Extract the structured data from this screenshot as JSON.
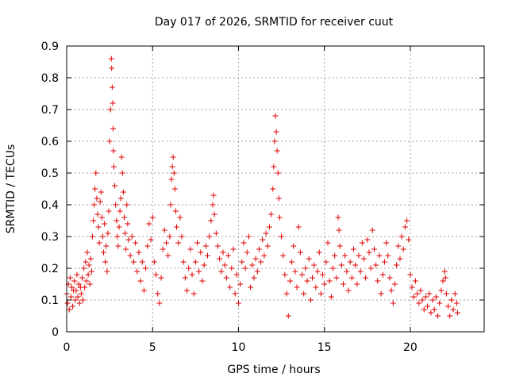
{
  "chart_data": {
    "type": "scatter",
    "title": "Day 017 of 2026, SRMTID for receiver cuut",
    "xlabel": "GPS time / hours",
    "ylabel": "SRMTID / TECUs",
    "xlim": [
      0,
      24.3
    ],
    "ylim": [
      0,
      0.9
    ],
    "xticks": [
      0,
      5,
      10,
      15,
      20
    ],
    "xtick_labels": [
      "0",
      "5",
      "10",
      "15",
      "20"
    ],
    "yticks": [
      0,
      0.1,
      0.2,
      0.3,
      0.4,
      0.5,
      0.6,
      0.7,
      0.8,
      0.9
    ],
    "ytick_labels": [
      "0",
      "0.1",
      "0.2",
      "0.3",
      "0.4",
      "0.5",
      "0.6",
      "0.7",
      "0.8",
      "0.9"
    ],
    "grid": true,
    "marker": "+",
    "marker_color": "#e00000",
    "series": [
      {
        "name": "SRMTID",
        "points": [
          [
            0.0,
            0.12
          ],
          [
            0.05,
            0.09
          ],
          [
            0.1,
            0.15
          ],
          [
            0.15,
            0.07
          ],
          [
            0.2,
            0.17
          ],
          [
            0.25,
            0.11
          ],
          [
            0.3,
            0.14
          ],
          [
            0.35,
            0.08
          ],
          [
            0.4,
            0.13
          ],
          [
            0.45,
            0.16
          ],
          [
            0.5,
            0.1
          ],
          [
            0.55,
            0.13
          ],
          [
            0.6,
            0.18
          ],
          [
            0.65,
            0.11
          ],
          [
            0.7,
            0.15
          ],
          [
            0.75,
            0.09
          ],
          [
            0.8,
            0.14
          ],
          [
            0.85,
            0.12
          ],
          [
            0.9,
            0.17
          ],
          [
            0.95,
            0.1
          ],
          [
            1.0,
            0.2
          ],
          [
            1.05,
            0.14
          ],
          [
            1.1,
            0.22
          ],
          [
            1.15,
            0.16
          ],
          [
            1.2,
            0.25
          ],
          [
            1.25,
            0.18
          ],
          [
            1.3,
            0.21
          ],
          [
            1.35,
            0.15
          ],
          [
            1.4,
            0.23
          ],
          [
            1.45,
            0.19
          ],
          [
            1.5,
            0.3
          ],
          [
            1.55,
            0.35
          ],
          [
            1.6,
            0.4
          ],
          [
            1.65,
            0.45
          ],
          [
            1.7,
            0.5
          ],
          [
            1.75,
            0.42
          ],
          [
            1.8,
            0.37
          ],
          [
            1.85,
            0.33
          ],
          [
            1.9,
            0.28
          ],
          [
            1.95,
            0.41
          ],
          [
            2.0,
            0.44
          ],
          [
            2.05,
            0.36
          ],
          [
            2.1,
            0.3
          ],
          [
            2.15,
            0.25
          ],
          [
            2.2,
            0.34
          ],
          [
            2.25,
            0.22
          ],
          [
            2.3,
            0.27
          ],
          [
            2.35,
            0.19
          ],
          [
            2.4,
            0.31
          ],
          [
            2.45,
            0.38
          ],
          [
            2.5,
            0.6
          ],
          [
            2.55,
            0.7
          ],
          [
            2.6,
            0.86
          ],
          [
            2.62,
            0.83
          ],
          [
            2.65,
            0.77
          ],
          [
            2.68,
            0.72
          ],
          [
            2.7,
            0.64
          ],
          [
            2.72,
            0.57
          ],
          [
            2.75,
            0.52
          ],
          [
            2.8,
            0.46
          ],
          [
            2.85,
            0.4
          ],
          [
            2.9,
            0.35
          ],
          [
            2.95,
            0.3
          ],
          [
            3.0,
            0.27
          ],
          [
            3.05,
            0.33
          ],
          [
            3.1,
            0.38
          ],
          [
            3.15,
            0.42
          ],
          [
            3.2,
            0.55
          ],
          [
            3.25,
            0.5
          ],
          [
            3.3,
            0.44
          ],
          [
            3.35,
            0.36
          ],
          [
            3.4,
            0.31
          ],
          [
            3.45,
            0.26
          ],
          [
            3.5,
            0.4
          ],
          [
            3.55,
            0.34
          ],
          [
            3.6,
            0.29
          ],
          [
            3.7,
            0.24
          ],
          [
            3.8,
            0.3
          ],
          [
            3.9,
            0.22
          ],
          [
            4.0,
            0.28
          ],
          [
            4.1,
            0.19
          ],
          [
            4.2,
            0.25
          ],
          [
            4.3,
            0.16
          ],
          [
            4.4,
            0.22
          ],
          [
            4.5,
            0.13
          ],
          [
            4.6,
            0.2
          ],
          [
            4.7,
            0.27
          ],
          [
            4.8,
            0.34
          ],
          [
            4.9,
            0.29
          ],
          [
            5.0,
            0.36
          ],
          [
            5.1,
            0.22
          ],
          [
            5.2,
            0.18
          ],
          [
            5.3,
            0.12
          ],
          [
            5.4,
            0.09
          ],
          [
            5.5,
            0.17
          ],
          [
            5.6,
            0.26
          ],
          [
            5.7,
            0.32
          ],
          [
            5.8,
            0.28
          ],
          [
            5.9,
            0.24
          ],
          [
            6.0,
            0.3
          ],
          [
            6.05,
            0.4
          ],
          [
            6.1,
            0.48
          ],
          [
            6.15,
            0.52
          ],
          [
            6.2,
            0.55
          ],
          [
            6.25,
            0.5
          ],
          [
            6.3,
            0.45
          ],
          [
            6.35,
            0.38
          ],
          [
            6.4,
            0.33
          ],
          [
            6.5,
            0.28
          ],
          [
            6.6,
            0.36
          ],
          [
            6.7,
            0.3
          ],
          [
            6.8,
            0.22
          ],
          [
            6.9,
            0.17
          ],
          [
            7.0,
            0.13
          ],
          [
            7.1,
            0.2
          ],
          [
            7.2,
            0.26
          ],
          [
            7.3,
            0.18
          ],
          [
            7.4,
            0.12
          ],
          [
            7.5,
            0.22
          ],
          [
            7.6,
            0.28
          ],
          [
            7.7,
            0.19
          ],
          [
            7.8,
            0.25
          ],
          [
            7.9,
            0.16
          ],
          [
            8.0,
            0.21
          ],
          [
            8.1,
            0.27
          ],
          [
            8.2,
            0.24
          ],
          [
            8.3,
            0.3
          ],
          [
            8.4,
            0.35
          ],
          [
            8.5,
            0.4
          ],
          [
            8.55,
            0.43
          ],
          [
            8.6,
            0.37
          ],
          [
            8.7,
            0.31
          ],
          [
            8.8,
            0.27
          ],
          [
            8.9,
            0.23
          ],
          [
            9.0,
            0.19
          ],
          [
            9.1,
            0.25
          ],
          [
            9.2,
            0.21
          ],
          [
            9.3,
            0.17
          ],
          [
            9.4,
            0.24
          ],
          [
            9.5,
            0.14
          ],
          [
            9.6,
            0.2
          ],
          [
            9.7,
            0.26
          ],
          [
            9.8,
            0.12
          ],
          [
            9.9,
            0.18
          ],
          [
            10.0,
            0.09
          ],
          [
            10.1,
            0.15
          ],
          [
            10.2,
            0.22
          ],
          [
            10.3,
            0.28
          ],
          [
            10.4,
            0.2
          ],
          [
            10.5,
            0.25
          ],
          [
            10.6,
            0.3
          ],
          [
            10.7,
            0.14
          ],
          [
            10.8,
            0.21
          ],
          [
            10.9,
            0.17
          ],
          [
            11.0,
            0.23
          ],
          [
            11.1,
            0.19
          ],
          [
            11.2,
            0.26
          ],
          [
            11.3,
            0.22
          ],
          [
            11.4,
            0.29
          ],
          [
            11.5,
            0.24
          ],
          [
            11.6,
            0.31
          ],
          [
            11.7,
            0.27
          ],
          [
            11.8,
            0.33
          ],
          [
            11.9,
            0.37
          ],
          [
            12.0,
            0.45
          ],
          [
            12.05,
            0.52
          ],
          [
            12.1,
            0.6
          ],
          [
            12.15,
            0.68
          ],
          [
            12.2,
            0.63
          ],
          [
            12.25,
            0.57
          ],
          [
            12.3,
            0.5
          ],
          [
            12.35,
            0.42
          ],
          [
            12.4,
            0.36
          ],
          [
            12.5,
            0.3
          ],
          [
            12.6,
            0.24
          ],
          [
            12.7,
            0.18
          ],
          [
            12.8,
            0.12
          ],
          [
            12.9,
            0.05
          ],
          [
            13.0,
            0.16
          ],
          [
            13.1,
            0.22
          ],
          [
            13.2,
            0.27
          ],
          [
            13.3,
            0.19
          ],
          [
            13.4,
            0.14
          ],
          [
            13.5,
            0.33
          ],
          [
            13.6,
            0.25
          ],
          [
            13.7,
            0.18
          ],
          [
            13.8,
            0.12
          ],
          [
            13.9,
            0.2
          ],
          [
            14.0,
            0.16
          ],
          [
            14.1,
            0.23
          ],
          [
            14.2,
            0.1
          ],
          [
            14.3,
            0.17
          ],
          [
            14.4,
            0.21
          ],
          [
            14.5,
            0.14
          ],
          [
            14.6,
            0.19
          ],
          [
            14.7,
            0.25
          ],
          [
            14.8,
            0.12
          ],
          [
            14.9,
            0.18
          ],
          [
            15.0,
            0.15
          ],
          [
            15.1,
            0.22
          ],
          [
            15.2,
            0.28
          ],
          [
            15.3,
            0.16
          ],
          [
            15.4,
            0.11
          ],
          [
            15.5,
            0.2
          ],
          [
            15.6,
            0.24
          ],
          [
            15.7,
            0.17
          ],
          [
            15.8,
            0.36
          ],
          [
            15.85,
            0.32
          ],
          [
            15.9,
            0.27
          ],
          [
            16.0,
            0.21
          ],
          [
            16.1,
            0.15
          ],
          [
            16.2,
            0.24
          ],
          [
            16.3,
            0.19
          ],
          [
            16.4,
            0.13
          ],
          [
            16.5,
            0.22
          ],
          [
            16.6,
            0.17
          ],
          [
            16.7,
            0.26
          ],
          [
            16.8,
            0.21
          ],
          [
            16.9,
            0.15
          ],
          [
            17.0,
            0.24
          ],
          [
            17.1,
            0.19
          ],
          [
            17.2,
            0.28
          ],
          [
            17.3,
            0.23
          ],
          [
            17.4,
            0.17
          ],
          [
            17.5,
            0.29
          ],
          [
            17.6,
            0.25
          ],
          [
            17.7,
            0.2
          ],
          [
            17.8,
            0.32
          ],
          [
            17.9,
            0.26
          ],
          [
            18.0,
            0.21
          ],
          [
            18.1,
            0.16
          ],
          [
            18.2,
            0.24
          ],
          [
            18.3,
            0.12
          ],
          [
            18.4,
            0.18
          ],
          [
            18.5,
            0.22
          ],
          [
            18.6,
            0.28
          ],
          [
            18.7,
            0.24
          ],
          [
            18.8,
            0.17
          ],
          [
            18.9,
            0.13
          ],
          [
            19.0,
            0.09
          ],
          [
            19.1,
            0.15
          ],
          [
            19.2,
            0.21
          ],
          [
            19.3,
            0.27
          ],
          [
            19.4,
            0.23
          ],
          [
            19.5,
            0.3
          ],
          [
            19.6,
            0.26
          ],
          [
            19.7,
            0.33
          ],
          [
            19.8,
            0.35
          ],
          [
            19.9,
            0.29
          ],
          [
            20.0,
            0.18
          ],
          [
            20.1,
            0.14
          ],
          [
            20.2,
            0.11
          ],
          [
            20.3,
            0.16
          ],
          [
            20.4,
            0.12
          ],
          [
            20.5,
            0.09
          ],
          [
            20.6,
            0.13
          ],
          [
            20.7,
            0.1
          ],
          [
            20.8,
            0.07
          ],
          [
            20.9,
            0.11
          ],
          [
            21.0,
            0.08
          ],
          [
            21.1,
            0.12
          ],
          [
            21.2,
            0.06
          ],
          [
            21.3,
            0.1
          ],
          [
            21.4,
            0.07
          ],
          [
            21.5,
            0.11
          ],
          [
            21.6,
            0.05
          ],
          [
            21.7,
            0.09
          ],
          [
            21.8,
            0.13
          ],
          [
            21.9,
            0.16
          ],
          [
            22.0,
            0.19
          ],
          [
            22.05,
            0.17
          ],
          [
            22.1,
            0.12
          ],
          [
            22.2,
            0.08
          ],
          [
            22.3,
            0.05
          ],
          [
            22.4,
            0.1
          ],
          [
            22.5,
            0.07
          ],
          [
            22.6,
            0.12
          ],
          [
            22.7,
            0.09
          ],
          [
            22.75,
            0.06
          ]
        ]
      }
    ]
  }
}
